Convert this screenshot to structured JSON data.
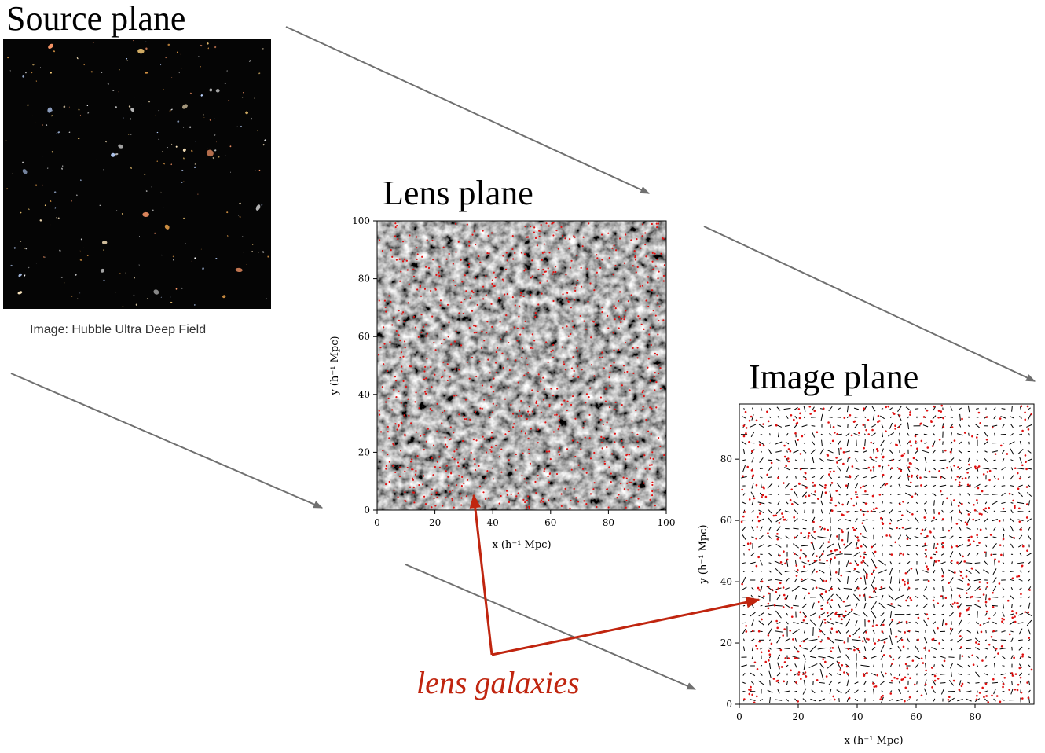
{
  "titles": {
    "source": "Source plane",
    "lens": "Lens plane",
    "image": "Image plane"
  },
  "source_caption": "Image: Hubble Ultra Deep Field",
  "annotation": {
    "text": "lens galaxies",
    "color": "#c0250f"
  },
  "colors": {
    "flow_arrow": "#707070",
    "galaxy_marker": "#e01010",
    "shear_stick": "#000000"
  },
  "chart_data": [
    {
      "type": "heatmap",
      "name": "lens-plane",
      "xlabel": "x (h⁻¹ Mpc)",
      "ylabel": "y (h⁻¹ Mpc)",
      "xlim": [
        0,
        100
      ],
      "ylim": [
        0,
        100
      ],
      "xticks": [
        "0",
        "20",
        "40",
        "60",
        "80",
        "100"
      ],
      "yticks": [
        "0",
        "20",
        "40",
        "60",
        "80",
        "100"
      ],
      "overlay": "red scatter points (lens galaxies)",
      "colormap": "grayscale"
    },
    {
      "type": "scatter",
      "name": "image-plane",
      "xlabel": "x (h⁻¹ Mpc)",
      "ylabel": "y (h⁻¹ Mpc)",
      "xlim": [
        0,
        100
      ],
      "ylim": [
        0,
        100
      ],
      "xticks": [
        "0",
        "20",
        "40",
        "60",
        "80"
      ],
      "yticks": [
        "0",
        "20",
        "40",
        "60",
        "80"
      ],
      "overlay": "red scatter points (lens galaxies) with black shear sticks"
    }
  ]
}
